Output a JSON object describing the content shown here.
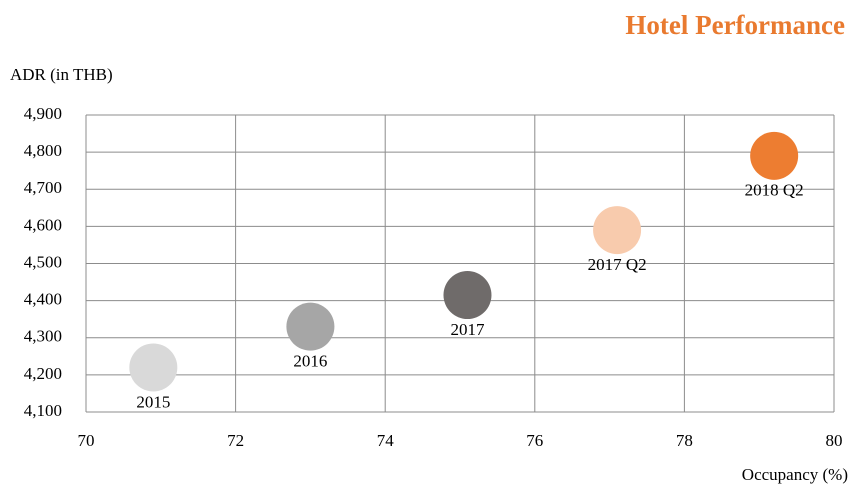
{
  "chart_data": {
    "type": "scatter",
    "title": "Hotel Performance",
    "y_label": "ADR (in THB)",
    "x_label": "Occupancy (%)",
    "labels": [
      "2015",
      "2016",
      "2017",
      "2017 Q2",
      "2018 Q2"
    ],
    "x": [
      70.9,
      73.0,
      75.1,
      77.1,
      79.2
    ],
    "values": [
      4220,
      4330,
      4415,
      4590,
      4790
    ],
    "colors": [
      "#d9d9d9",
      "#a6a6a6",
      "#6f6b6a",
      "#f8cbad",
      "#ed7d31"
    ],
    "xlim": [
      70,
      80
    ],
    "xticks": [
      70,
      72,
      74,
      76,
      78,
      80
    ],
    "ylim": [
      4100,
      4900
    ],
    "yticks": [
      {
        "value": 4100,
        "label": "4,100"
      },
      {
        "value": 4200,
        "label": "4,200"
      },
      {
        "value": 4300,
        "label": "4,300"
      },
      {
        "value": 4400,
        "label": "4,400"
      },
      {
        "value": 4500,
        "label": "4,500"
      },
      {
        "value": 4600,
        "label": "4,600"
      },
      {
        "value": 4700,
        "label": "4,700"
      },
      {
        "value": 4800,
        "label": "4,800"
      },
      {
        "value": 4900,
        "label": "4,900"
      }
    ],
    "grid": true
  }
}
